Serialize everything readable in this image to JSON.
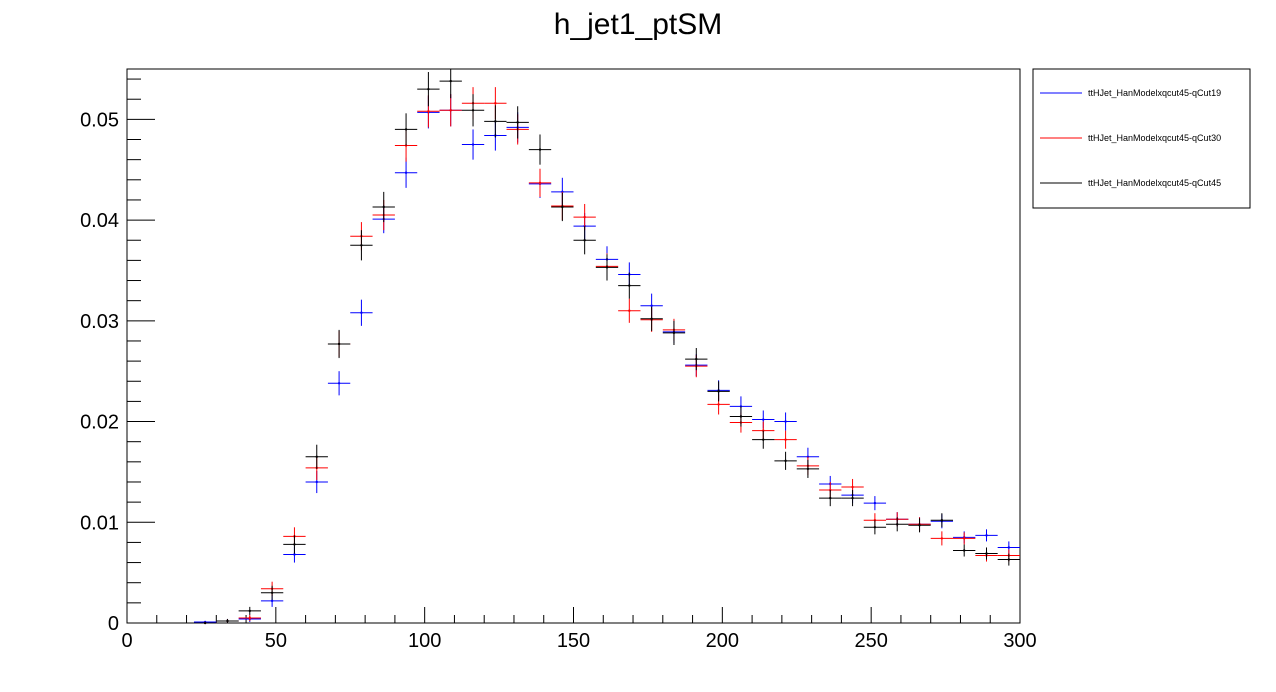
{
  "chart_data": {
    "type": "scatter",
    "title": "h_jet1_ptSM",
    "xlabel": "",
    "ylabel": "",
    "xlim": [
      0,
      300
    ],
    "ylim": [
      0,
      0.055
    ],
    "x_ticks": [
      0,
      50,
      100,
      150,
      200,
      250,
      300
    ],
    "x_tick_labels": [
      "0",
      "50",
      "100",
      "150",
      "200",
      "250",
      "300"
    ],
    "y_ticks": [
      0,
      0.01,
      0.02,
      0.03,
      0.04,
      0.05
    ],
    "y_tick_labels": [
      "0",
      "0.01",
      "0.02",
      "0.03",
      "0.04",
      "0.05"
    ],
    "bin_width": 7.5,
    "x": [
      26.25,
      33.75,
      41.25,
      48.75,
      56.25,
      63.75,
      71.25,
      78.75,
      86.25,
      93.75,
      101.25,
      108.75,
      116.25,
      123.75,
      131.25,
      138.75,
      146.25,
      153.75,
      161.25,
      168.75,
      176.25,
      183.75,
      191.25,
      198.75,
      206.25,
      213.75,
      221.25,
      228.75,
      236.25,
      243.75,
      251.25,
      258.75,
      266.25,
      273.75,
      281.25,
      288.75,
      296.25
    ],
    "legend_position": "top-right",
    "grid": false,
    "series": [
      {
        "name": "ttHJet_HanModelxqcut45-qCut19",
        "color": "#0000ff",
        "values": [
          0.0001,
          0.0002,
          0.0004,
          0.0022,
          0.0068,
          0.014,
          0.0238,
          0.0308,
          0.0401,
          0.0447,
          0.0507,
          0.0509,
          0.0475,
          0.0484,
          0.0492,
          0.0436,
          0.0428,
          0.0394,
          0.0361,
          0.0346,
          0.0315,
          0.0289,
          0.0256,
          0.0231,
          0.0215,
          0.0202,
          0.02,
          0.0165,
          0.0138,
          0.0127,
          0.0119,
          0.0103,
          0.0098,
          0.0101,
          0.0085,
          0.0087,
          0.0075
        ],
        "errors": [
          0.0001,
          0.0002,
          0.0003,
          0.0006,
          0.0008,
          0.0011,
          0.0012,
          0.0013,
          0.0014,
          0.0015,
          0.0016,
          0.0016,
          0.0015,
          0.0015,
          0.0015,
          0.0014,
          0.0014,
          0.0013,
          0.0013,
          0.0012,
          0.0012,
          0.0011,
          0.0011,
          0.001,
          0.001,
          0.0009,
          0.0009,
          0.0009,
          0.0008,
          0.0008,
          0.0007,
          0.0007,
          0.0007,
          0.0007,
          0.0006,
          0.0006,
          0.0006
        ]
      },
      {
        "name": "ttHJet_HanModelxqcut45-qCut30",
        "color": "#ff0000",
        "values": [
          0.0,
          0.0002,
          0.0005,
          0.0034,
          0.0086,
          0.0154,
          0.0277,
          0.0384,
          0.0405,
          0.0474,
          0.0508,
          0.0509,
          0.0516,
          0.0516,
          0.049,
          0.0437,
          0.0414,
          0.0403,
          0.0354,
          0.031,
          0.0301,
          0.0291,
          0.0255,
          0.0217,
          0.0199,
          0.0191,
          0.0182,
          0.0156,
          0.0132,
          0.0135,
          0.0102,
          0.0103,
          0.0098,
          0.0084,
          0.0084,
          0.0067,
          0.0067
        ],
        "errors": [
          0.0001,
          0.0002,
          0.0003,
          0.0007,
          0.0009,
          0.0012,
          0.0013,
          0.0014,
          0.0015,
          0.0016,
          0.0016,
          0.0016,
          0.0016,
          0.0016,
          0.0015,
          0.0014,
          0.0014,
          0.0013,
          0.0013,
          0.0012,
          0.0012,
          0.0011,
          0.0011,
          0.001,
          0.001,
          0.0009,
          0.0009,
          0.0009,
          0.0008,
          0.0008,
          0.0007,
          0.0007,
          0.0007,
          0.0007,
          0.0006,
          0.0006,
          0.0006
        ]
      },
      {
        "name": "ttHJet_HanModelxqcut45-qCut45",
        "color": "#000000",
        "values": [
          0.0,
          0.0002,
          0.0012,
          0.003,
          0.0078,
          0.0165,
          0.0277,
          0.0375,
          0.0413,
          0.049,
          0.053,
          0.0538,
          0.0509,
          0.0498,
          0.0497,
          0.047,
          0.0413,
          0.038,
          0.0353,
          0.0335,
          0.0302,
          0.0288,
          0.0262,
          0.023,
          0.0205,
          0.0182,
          0.0161,
          0.0153,
          0.0124,
          0.0124,
          0.0095,
          0.0098,
          0.0097,
          0.0102,
          0.0072,
          0.0069,
          0.0063
        ],
        "errors": [
          0.0001,
          0.0002,
          0.0004,
          0.0007,
          0.0009,
          0.0012,
          0.0014,
          0.0015,
          0.0015,
          0.0016,
          0.0017,
          0.0017,
          0.0016,
          0.0016,
          0.0016,
          0.0015,
          0.0014,
          0.0014,
          0.0013,
          0.0013,
          0.0012,
          0.0012,
          0.0011,
          0.001,
          0.001,
          0.0009,
          0.0009,
          0.0009,
          0.0008,
          0.0008,
          0.0007,
          0.0007,
          0.0007,
          0.0007,
          0.0006,
          0.0006,
          0.0006
        ]
      }
    ]
  }
}
